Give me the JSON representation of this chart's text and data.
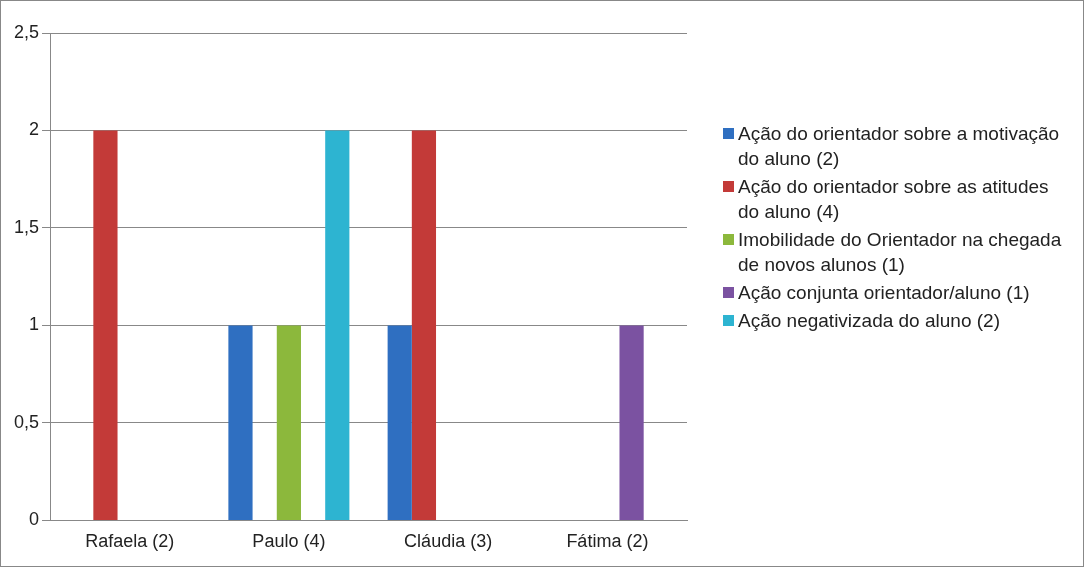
{
  "chart_data": {
    "type": "bar",
    "categories": [
      "Rafaela (2)",
      "Paulo (4)",
      "Cláudia (3)",
      "Fátima (2)"
    ],
    "series": [
      {
        "name": "Ação do orientador sobre a motivação do aluno (2)",
        "color": "#2f6fc1",
        "values": [
          null,
          1,
          1,
          null
        ]
      },
      {
        "name": "Ação do orientador sobre as atitudes do aluno (4)",
        "color": "#c33a38",
        "values": [
          2,
          null,
          2,
          null
        ]
      },
      {
        "name": "Imobilidade do Orientador na chegada de novos  alunos (1)",
        "color": "#8cb83c",
        "values": [
          null,
          1,
          null,
          null
        ]
      },
      {
        "name": "Ação conjunta orientador/aluno (1)",
        "color": "#7b52a1",
        "values": [
          null,
          null,
          null,
          1
        ]
      },
      {
        "name": "Ação negativizada do aluno (2)",
        "color": "#2db4d1",
        "values": [
          null,
          2,
          null,
          null
        ]
      }
    ],
    "ylim": [
      0,
      2.5
    ],
    "yticks": [
      0,
      {
        "value": 0.5,
        "label": "0,5"
      },
      1,
      {
        "value": 1.5,
        "label": "1,5"
      },
      2,
      {
        "value": 2.5,
        "label": "2,5"
      }
    ],
    "grid": "y",
    "legend": "right"
  }
}
